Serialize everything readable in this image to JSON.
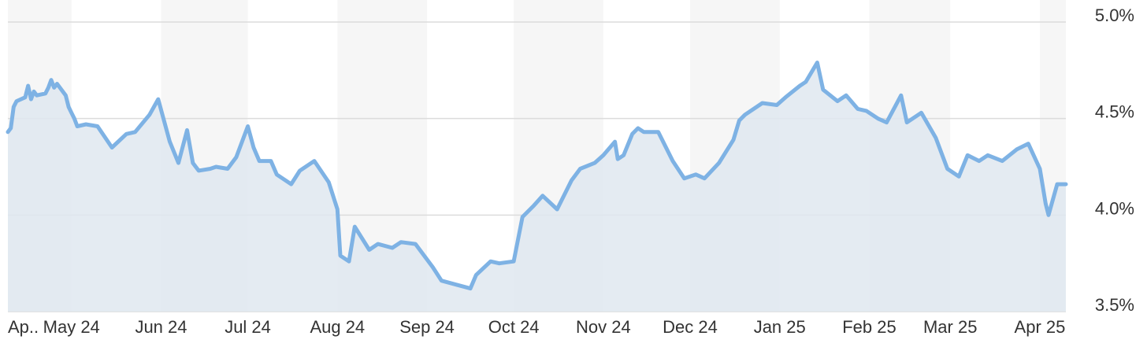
{
  "chart_data": {
    "type": "area",
    "title": "",
    "xlabel": "",
    "ylabel": "",
    "x_tick_labels": [
      "Ap..",
      "May 24",
      "Jun 24",
      "Jul 24",
      "Aug 24",
      "Sep 24",
      "Oct 24",
      "Nov 24",
      "Dec 24",
      "Jan 25",
      "Feb 25",
      "Mar 25",
      "Apr 25"
    ],
    "y_tick_labels": [
      "3.5%",
      "4.0%",
      "4.5%",
      "5.0%"
    ],
    "y_ticks": [
      3.5,
      4.0,
      4.5,
      5.0
    ],
    "ylim": [
      3.5,
      5.0
    ],
    "xlim": [
      "2024-04-09",
      "2025-04-10"
    ],
    "grid": true,
    "legend": "none",
    "colors": {
      "line": "#7eb2e4",
      "fill": "#dfe7f0",
      "band": "#f6f6f6",
      "grid": "#dcdcdc",
      "text": "#333333"
    },
    "series": [
      {
        "x": [
          "2024-04-09",
          "2024-04-10",
          "2024-04-11",
          "2024-04-12",
          "2024-04-15",
          "2024-04-16",
          "2024-04-17",
          "2024-04-18",
          "2024-04-19",
          "2024-04-22",
          "2024-04-23",
          "2024-04-24",
          "2024-04-25",
          "2024-04-26",
          "2024-04-29",
          "2024-04-30",
          "2024-05-01",
          "2024-05-02",
          "2024-05-03",
          "2024-05-06",
          "2024-05-10",
          "2024-05-15",
          "2024-05-20",
          "2024-05-23",
          "2024-05-28",
          "2024-05-31",
          "2024-06-04",
          "2024-06-07",
          "2024-06-10",
          "2024-06-12",
          "2024-06-14",
          "2024-06-18",
          "2024-06-20",
          "2024-06-24",
          "2024-06-27",
          "2024-07-01",
          "2024-07-03",
          "2024-07-05",
          "2024-07-09",
          "2024-07-11",
          "2024-07-16",
          "2024-07-19",
          "2024-07-24",
          "2024-07-29",
          "2024-08-01",
          "2024-08-02",
          "2024-08-05",
          "2024-08-07",
          "2024-08-12",
          "2024-08-15",
          "2024-08-20",
          "2024-08-23",
          "2024-08-28",
          "2024-09-03",
          "2024-09-06",
          "2024-09-11",
          "2024-09-16",
          "2024-09-18",
          "2024-09-23",
          "2024-09-26",
          "2024-10-01",
          "2024-10-04",
          "2024-10-08",
          "2024-10-11",
          "2024-10-16",
          "2024-10-21",
          "2024-10-24",
          "2024-10-29",
          "2024-11-01",
          "2024-11-05",
          "2024-11-06",
          "2024-11-08",
          "2024-11-11",
          "2024-11-13",
          "2024-11-15",
          "2024-11-20",
          "2024-11-25",
          "2024-11-29",
          "2024-12-03",
          "2024-12-06",
          "2024-12-11",
          "2024-12-16",
          "2024-12-18",
          "2024-12-20",
          "2024-12-26",
          "2024-12-31",
          "2025-01-03",
          "2025-01-08",
          "2025-01-10",
          "2025-01-14",
          "2025-01-16",
          "2025-01-21",
          "2025-01-24",
          "2025-01-28",
          "2025-01-31",
          "2025-02-04",
          "2025-02-07",
          "2025-02-12",
          "2025-02-14",
          "2025-02-19",
          "2025-02-24",
          "2025-02-28",
          "2025-03-04",
          "2025-03-07",
          "2025-03-11",
          "2025-03-14",
          "2025-03-19",
          "2025-03-24",
          "2025-03-28",
          "2025-04-01",
          "2025-04-03",
          "2025-04-04",
          "2025-04-07",
          "2025-04-09",
          "2025-04-10"
        ],
        "y": [
          4.43,
          4.45,
          4.56,
          4.59,
          4.61,
          4.67,
          4.6,
          4.64,
          4.62,
          4.63,
          4.66,
          4.7,
          4.66,
          4.68,
          4.62,
          4.56,
          4.53,
          4.5,
          4.46,
          4.47,
          4.46,
          4.35,
          4.42,
          4.43,
          4.52,
          4.6,
          4.38,
          4.27,
          4.44,
          4.27,
          4.23,
          4.24,
          4.25,
          4.24,
          4.3,
          4.46,
          4.35,
          4.28,
          4.28,
          4.21,
          4.16,
          4.23,
          4.28,
          4.17,
          4.03,
          3.79,
          3.76,
          3.94,
          3.82,
          3.85,
          3.83,
          3.86,
          3.85,
          3.73,
          3.66,
          3.64,
          3.62,
          3.69,
          3.76,
          3.75,
          3.76,
          3.99,
          4.05,
          4.1,
          4.03,
          4.18,
          4.24,
          4.27,
          4.31,
          4.38,
          4.29,
          4.31,
          4.42,
          4.45,
          4.43,
          4.43,
          4.28,
          4.19,
          4.21,
          4.19,
          4.27,
          4.39,
          4.49,
          4.52,
          4.58,
          4.57,
          4.61,
          4.67,
          4.69,
          4.79,
          4.65,
          4.59,
          4.62,
          4.55,
          4.54,
          4.5,
          4.48,
          4.62,
          4.48,
          4.53,
          4.4,
          4.24,
          4.2,
          4.31,
          4.28,
          4.31,
          4.28,
          4.34,
          4.37,
          4.24,
          4.06,
          4.0,
          4.16,
          4.16,
          4.16
        ]
      }
    ]
  }
}
